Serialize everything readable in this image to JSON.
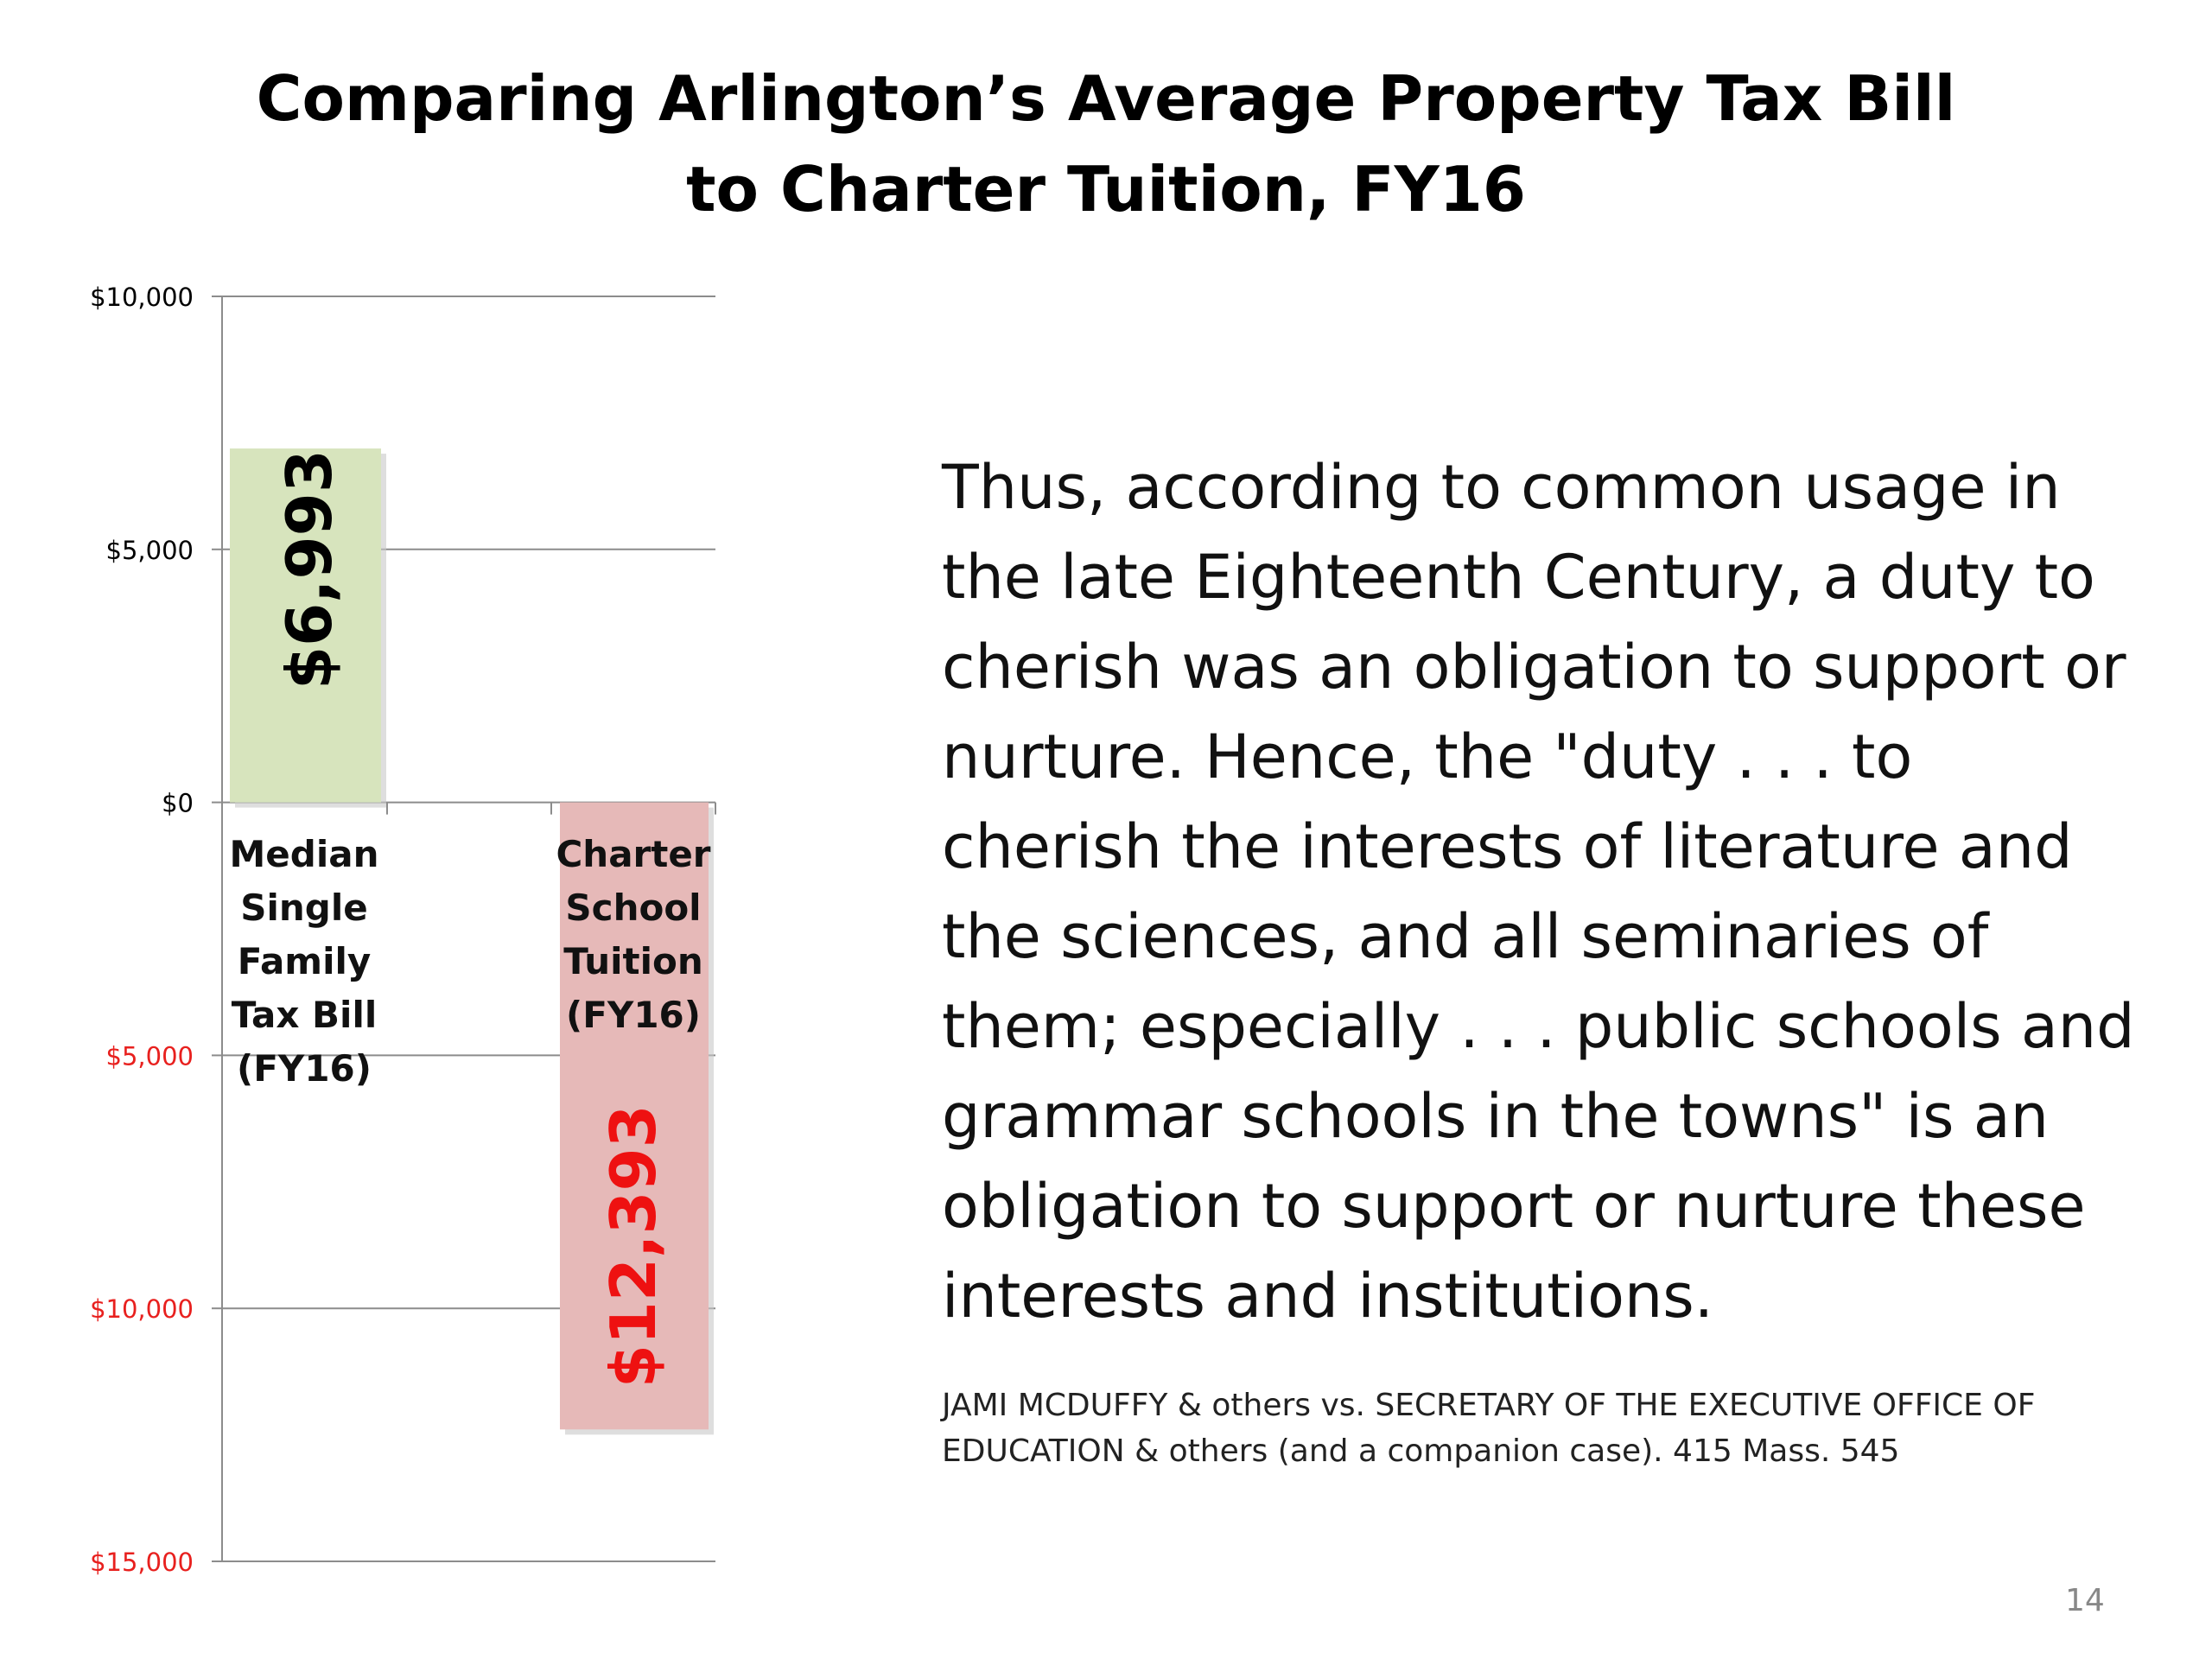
{
  "slide": {
    "title_line1": "Comparing Arlington’s Average Property Tax Bill",
    "title_line2": "to Charter Tuition, FY16",
    "quote": "Thus, according to common usage in the late Eighteenth Century, a duty to cherish was an obligation to support or nurture. Hence, the \"duty . . . to cherish the interests of literature and the sciences, and all seminaries of them; especially . . . public schools and grammar schools in the towns\" is an obligation to support or nurture these interests and institutions.",
    "citation": "JAMI MCDUFFY & others vs. SECRETARY OF THE EXECUTIVE OFFICE OF EDUCATION & others (and a companion case). 415 Mass. 545",
    "page_number": "14"
  },
  "chart_data": {
    "type": "bar",
    "title": "",
    "xlabel": "",
    "ylabel": "",
    "ylim": [
      -15000,
      10000
    ],
    "grid": true,
    "y_ticks": [
      {
        "value": 10000,
        "label": "$10,000",
        "color": "#000000"
      },
      {
        "value": 5000,
        "label": "$5,000",
        "color": "#000000"
      },
      {
        "value": 0,
        "label": "$0",
        "color": "#000000"
      },
      {
        "value": -5000,
        "label": "$5,000",
        "color": "#e8201e"
      },
      {
        "value": -10000,
        "label": "$10,000",
        "color": "#e8201e"
      },
      {
        "value": -15000,
        "label": "$15,000",
        "color": "#e8201e"
      }
    ],
    "categories": [
      "Median\nSingle\nFamily\nTax Bill\n(FY16)",
      "Charter\nSchool\nTuition\n(FY16)"
    ],
    "values": [
      6993,
      -12393
    ],
    "data_labels": [
      "$6,993",
      "$12,393"
    ],
    "bar_colors": [
      "#d7e4bd",
      "#e6b9b8"
    ],
    "label_colors": [
      "#000000",
      "#ee1111"
    ]
  }
}
